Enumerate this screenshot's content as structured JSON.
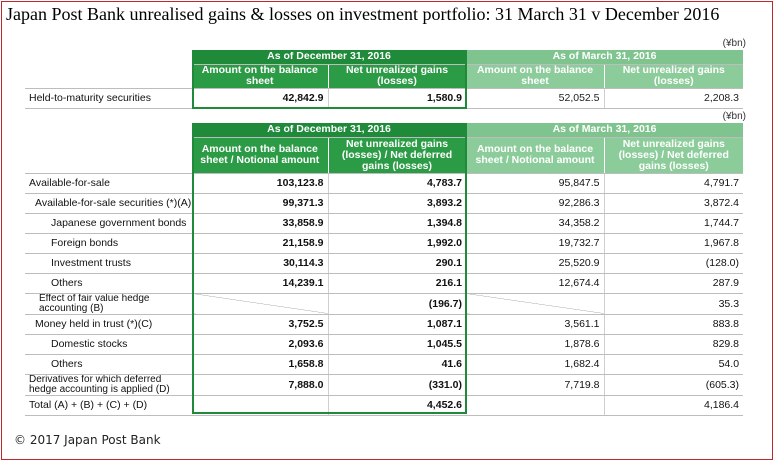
{
  "title": "Japan Post Bank unrealised gains & losses on investment portfolio: 31 March 31 v December 2016",
  "unit": "(¥bn)",
  "footer": "© 2017 Japan Post Bank",
  "table1": {
    "header_dec": "As of December 31, 2016",
    "header_mar": "As of March 31, 2016",
    "col_amount": "Amount on the balance sheet",
    "col_net": "Net unrealized gains (losses)",
    "rows": [
      {
        "label": "Held-to-maturity securities",
        "dec_amount": "42,842.9",
        "dec_net": "1,580.9",
        "mar_amount": "52,052.5",
        "mar_net": "2,208.3"
      }
    ]
  },
  "table2": {
    "header_dec": "As of December 31, 2016",
    "header_mar": "As of March 31, 2016",
    "col_amount": "Amount on the balance sheet / Notional amount",
    "col_net": "Net unrealized gains (losses) / Net deferred gains (losses)",
    "rows": [
      {
        "label": "Available-for-sale",
        "dec_amount": "103,123.8",
        "dec_net": "4,783.7",
        "mar_amount": "95,847.5",
        "mar_net": "4,791.7"
      },
      {
        "label": "Available-for-sale securities (*)(A)",
        "dec_amount": "99,371.3",
        "dec_net": "3,893.2",
        "mar_amount": "92,286.3",
        "mar_net": "3,872.4"
      },
      {
        "label": "Japanese government bonds",
        "dec_amount": "33,858.9",
        "dec_net": "1,394.8",
        "mar_amount": "34,358.2",
        "mar_net": "1,744.7"
      },
      {
        "label": "Foreign bonds",
        "dec_amount": "21,158.9",
        "dec_net": "1,992.0",
        "mar_amount": "19,732.7",
        "mar_net": "1,967.8"
      },
      {
        "label": "Investment trusts",
        "dec_amount": "30,114.3",
        "dec_net": "290.1",
        "mar_amount": "25,520.9",
        "mar_net": "(128.0)"
      },
      {
        "label": "Others",
        "dec_amount": "14,239.1",
        "dec_net": "216.1",
        "mar_amount": "12,674.4",
        "mar_net": "287.9"
      },
      {
        "label": "Effect of fair value hedge accounting (B)",
        "dec_amount": "",
        "dec_net": "(196.7)",
        "mar_amount": "",
        "mar_net": "35.3"
      },
      {
        "label": "Money held in trust (*)(C)",
        "dec_amount": "3,752.5",
        "dec_net": "1,087.1",
        "mar_amount": "3,561.1",
        "mar_net": "883.8"
      },
      {
        "label": "Domestic stocks",
        "dec_amount": "2,093.6",
        "dec_net": "1,045.5",
        "mar_amount": "1,878.6",
        "mar_net": "829.8"
      },
      {
        "label": "Others",
        "dec_amount": "1,658.8",
        "dec_net": "41.6",
        "mar_amount": "1,682.4",
        "mar_net": "54.0"
      },
      {
        "label": "Derivatives for which deferred hedge accounting is applied (D)",
        "dec_amount": "7,888.0",
        "dec_net": "(331.0)",
        "mar_amount": "7,719.8",
        "mar_net": "(605.3)"
      },
      {
        "label": "Total (A) + (B) + (C) + (D)",
        "dec_amount": "",
        "dec_net": "4,452.6",
        "mar_amount": "",
        "mar_net": "4,186.4"
      }
    ]
  }
}
